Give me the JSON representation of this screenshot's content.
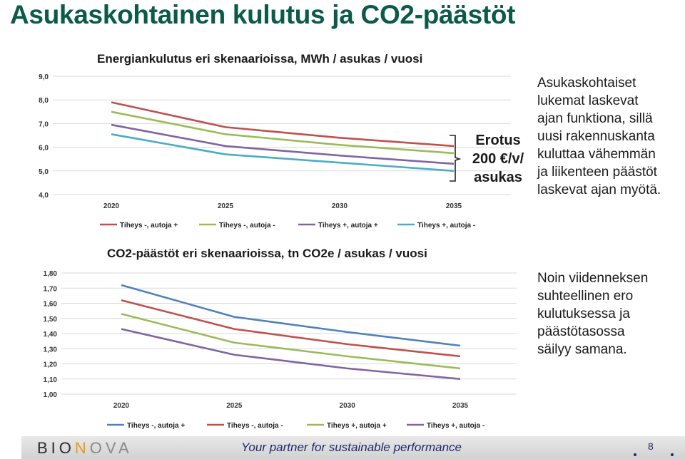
{
  "slide": {
    "title": "Asukaskohtainen kulutus ja CO2-päästöt",
    "erotus": {
      "line1": "Erotus",
      "line2": "200 €/v/",
      "line3": "asukas"
    },
    "text_top": [
      "Asukaskohtaiset",
      "lukemat laskevat",
      "ajan funktiona, sillä",
      "uusi rakennuskanta",
      "kuluttaa vähemmän",
      "ja liikenteen päästöt",
      "laskevat ajan myötä."
    ],
    "text_bottom": [
      "Noin viidenneksen",
      "suhteellinen ero",
      "kulutuksessa ja",
      "päästötasossa",
      "säilyy samana."
    ]
  },
  "footer": {
    "logo_parts": [
      "BIO",
      "N",
      "O",
      "VA"
    ],
    "tagline": "Your partner for sustainable performance",
    "page": "8"
  },
  "chart_data": [
    {
      "type": "line",
      "title": "Energiankulutus eri skenaarioissa, MWh / asukas / vuosi",
      "categories": [
        "2020",
        "2025",
        "2030",
        "2035"
      ],
      "ylim": [
        4.0,
        9.0
      ],
      "yticks": [
        "4,0",
        "5,0",
        "6,0",
        "7,0",
        "8,0",
        "9,0"
      ],
      "ytick_values": [
        4,
        5,
        6,
        7,
        8,
        9
      ],
      "grid": true,
      "legend_position": "bottom",
      "series": [
        {
          "name": "Tiheys -, autoja +",
          "color": "#c0504d",
          "values": [
            7.9,
            6.85,
            6.4,
            6.05
          ]
        },
        {
          "name": "Tiheys -, autoja -",
          "color": "#9bbb59",
          "values": [
            7.5,
            6.55,
            6.1,
            5.75
          ]
        },
        {
          "name": "Tiheys +, autoja +",
          "color": "#8064a2",
          "values": [
            6.95,
            6.05,
            5.65,
            5.3
          ]
        },
        {
          "name": "Tiheys +, autoja -",
          "color": "#4bacc6",
          "values": [
            6.55,
            5.7,
            5.35,
            5.0
          ]
        }
      ]
    },
    {
      "type": "line",
      "title": "CO2-päästöt eri skenaarioissa, tn CO2e / asukas / vuosi",
      "categories": [
        "2020",
        "2025",
        "2030",
        "2035"
      ],
      "ylim": [
        1.0,
        1.8
      ],
      "yticks": [
        "1,00",
        "1,10",
        "1,20",
        "1,30",
        "1,40",
        "1,50",
        "1,60",
        "1,70",
        "1,80"
      ],
      "ytick_values": [
        1.0,
        1.1,
        1.2,
        1.3,
        1.4,
        1.5,
        1.6,
        1.7,
        1.8
      ],
      "grid": true,
      "legend_position": "bottom",
      "series": [
        {
          "name": "Tiheys -, autoja +",
          "color": "#4f81bd",
          "values": [
            1.72,
            1.51,
            1.41,
            1.32
          ]
        },
        {
          "name": "Tiheys -, autoja -",
          "color": "#c0504d",
          "values": [
            1.62,
            1.43,
            1.33,
            1.25
          ]
        },
        {
          "name": "Tiheys +, autoja +",
          "color": "#9bbb59",
          "values": [
            1.53,
            1.34,
            1.25,
            1.17
          ]
        },
        {
          "name": "Tiheys +, autoja -",
          "color": "#8064a2",
          "values": [
            1.43,
            1.26,
            1.17,
            1.1
          ]
        }
      ]
    }
  ]
}
